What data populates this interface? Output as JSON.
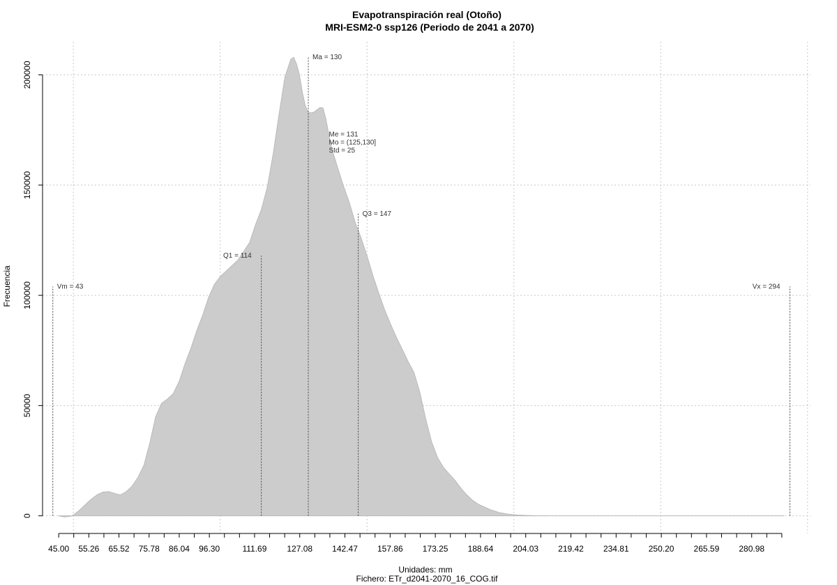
{
  "chart_data": {
    "type": "area",
    "title": "Evapotranspiración real (Otoño)",
    "subtitle": "MRI-ESM2-0 ssp126 (Periodo de 2041 a 2070)",
    "xlabel": "Unidades: mm",
    "caption": "Fichero: ETr_d2041-2070_16_COG.tif",
    "ylabel": "Frecuencia",
    "xlim": [
      39.5,
      301
    ],
    "ylim": [
      -8000,
      215000
    ],
    "x_ticks": [
      45.0,
      55.26,
      65.52,
      75.78,
      86.04,
      96.3,
      111.69,
      127.08,
      142.47,
      157.86,
      173.25,
      188.64,
      204.03,
      219.42,
      234.81,
      250.2,
      265.59,
      280.98
    ],
    "x_tick_labels": [
      "45.00",
      "55.26",
      "65.52",
      "75.78",
      "86.04",
      "96.30",
      "111.69",
      "127.08",
      "142.47",
      "157.86",
      "173.25",
      "188.64",
      "204.03",
      "219.42",
      "234.81",
      "250.20",
      "265.59",
      "280.98"
    ],
    "minor_ticks": [
      50.13,
      60.39,
      70.65,
      80.91,
      91.17,
      101.43,
      106.56,
      116.82,
      121.95,
      132.21,
      137.34,
      147.6,
      152.73,
      162.99,
      168.12,
      178.38,
      183.51,
      193.77,
      198.9,
      209.16,
      214.29,
      224.55,
      229.68,
      239.94,
      245.07,
      255.33,
      260.46,
      270.72,
      275.85,
      286.11,
      291.24
    ],
    "y_ticks": [
      0,
      50000,
      100000,
      150000,
      200000
    ],
    "y_tick_labels": [
      "0",
      "50000",
      "100000",
      "150000",
      "200000"
    ],
    "x_grid": [
      50,
      100,
      150,
      200,
      250,
      300
    ],
    "grid": true,
    "fill_color": "#cccccc",
    "series": [
      {
        "x": [
          45,
          47,
          49,
          50,
          52,
          54,
          56,
          58,
          60,
          62,
          64,
          66,
          68,
          70,
          72,
          74,
          76,
          78,
          80,
          82,
          84,
          86,
          88,
          90,
          92,
          94,
          96,
          98,
          100,
          102,
          104,
          106,
          108,
          110,
          112,
          114,
          116,
          118,
          120,
          122,
          124,
          125,
          126,
          127,
          128,
          129,
          130,
          131,
          132,
          133,
          134,
          135,
          136,
          137,
          138,
          140,
          142,
          144,
          146,
          148,
          150,
          152,
          154,
          156,
          158,
          160,
          162,
          164,
          166,
          168,
          170,
          172,
          174,
          176,
          178,
          180,
          182,
          184,
          186,
          188,
          190,
          192,
          195,
          198,
          201,
          204,
          207,
          210,
          213,
          216,
          220,
          225,
          230,
          240,
          250,
          260,
          270,
          280,
          290,
          292
        ],
        "values": [
          0,
          -500,
          -200,
          400,
          2500,
          5000,
          7500,
          9500,
          10800,
          11000,
          10200,
          9500,
          11000,
          13500,
          17500,
          23000,
          33000,
          45000,
          51000,
          53000,
          55500,
          61000,
          69000,
          76000,
          84000,
          91000,
          99000,
          105000,
          108500,
          111000,
          113500,
          116000,
          120000,
          124000,
          132000,
          139000,
          149000,
          164000,
          182000,
          199000,
          207000,
          208000,
          205000,
          200000,
          192000,
          186000,
          183000,
          182800,
          183200,
          184200,
          185200,
          185000,
          180000,
          173000,
          166500,
          158000,
          149500,
          142000,
          133000,
          126000,
          118000,
          109000,
          101000,
          93500,
          87000,
          81000,
          75500,
          70000,
          65000,
          56000,
          44000,
          33500,
          26500,
          22000,
          19000,
          16000,
          12500,
          9500,
          7000,
          5200,
          4000,
          2800,
          1500,
          800,
          400,
          200,
          100,
          50,
          25,
          12,
          5,
          2,
          1,
          0,
          0,
          0,
          0,
          0,
          0,
          0
        ]
      }
    ],
    "stat_lines": [
      {
        "label": "Vm = 43",
        "x": 43,
        "top": 104000,
        "label_side": "right"
      },
      {
        "label": "Q1 = 114",
        "x": 114,
        "top": 118000,
        "label_side": "left"
      },
      {
        "label": "Ma = 130",
        "x": 130,
        "top": 208000,
        "label_side": "right"
      },
      {
        "label": "Q3 = 147",
        "x": 147,
        "top": 137000,
        "label_side": "right"
      },
      {
        "label": "Vx = 294",
        "x": 294,
        "top": 104000,
        "label_side": "left"
      }
    ],
    "stats_block": [
      "Me = 131",
      "Mo = (125,130]",
      "Std = 25"
    ],
    "stats_block_anchor": {
      "x": 137,
      "y": 172000
    }
  }
}
